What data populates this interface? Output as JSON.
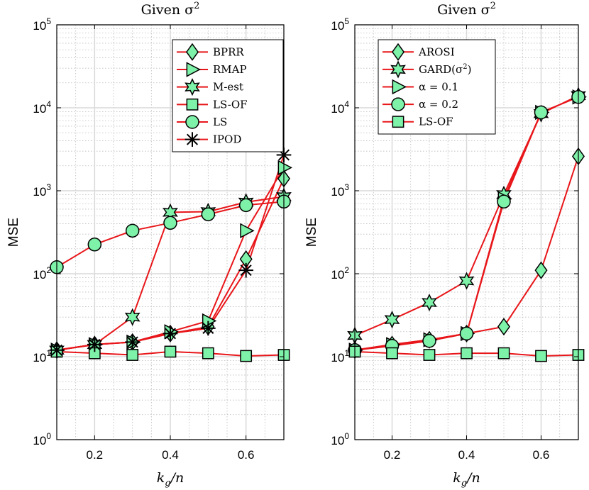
{
  "chart_data": [
    {
      "type": "line",
      "title": "Given σ²",
      "title_main": "Given σ",
      "title_sup": "2",
      "xlabel_k": "k",
      "xlabel_sub": "g",
      "xlabel_rest": "/n",
      "ylabel": "MSE",
      "xlim": [
        0.1,
        0.7
      ],
      "ylim": [
        1,
        100000
      ],
      "yscale": "log",
      "grid": true,
      "legend_position": "top-right",
      "x_ticks": [
        "0.2",
        "0.4",
        "0.6"
      ],
      "x_tick_values": [
        0.2,
        0.4,
        0.6
      ],
      "y_ticks": [
        {
          "base": "10",
          "exp": "0",
          "value": 1
        },
        {
          "base": "10",
          "exp": "1",
          "value": 10
        },
        {
          "base": "10",
          "exp": "2",
          "value": 100
        },
        {
          "base": "10",
          "exp": "3",
          "value": 1000
        },
        {
          "base": "10",
          "exp": "4",
          "value": 10000
        },
        {
          "base": "10",
          "exp": "5",
          "value": 100000
        }
      ],
      "x": [
        0.1,
        0.2,
        0.3,
        0.4,
        0.5,
        0.6,
        0.7
      ],
      "series": [
        {
          "name": "BPRR",
          "marker": "diamond",
          "values": [
            12,
            14,
            15,
            19,
            23,
            150,
            1400
          ]
        },
        {
          "name": "RMAP",
          "marker": "triangle-right",
          "values": [
            12,
            14,
            15,
            20,
            27,
            330,
            1900
          ]
        },
        {
          "name": "M-est",
          "marker": "hexagram",
          "values": [
            12,
            14,
            30,
            550,
            560,
            730,
            850
          ]
        },
        {
          "name": "LS-OF",
          "marker": "square",
          "values": [
            11.5,
            11,
            10.5,
            11.5,
            11,
            10.2,
            10.5
          ]
        },
        {
          "name": "LS",
          "marker": "circle",
          "values": [
            120,
            225,
            330,
            410,
            520,
            670,
            740
          ]
        },
        {
          "name": "IPOD",
          "marker": "asterisk",
          "values": [
            12,
            14,
            15,
            19,
            22,
            110,
            2700
          ]
        }
      ]
    },
    {
      "type": "line",
      "title": "Given σ²",
      "title_main": "Given σ",
      "title_sup": "2",
      "xlabel_k": "k",
      "xlabel_sub": "g",
      "xlabel_rest": "/n",
      "ylabel": "MSE",
      "xlim": [
        0.1,
        0.7
      ],
      "ylim": [
        1,
        100000
      ],
      "yscale": "log",
      "grid": true,
      "legend_position": "top-left",
      "x_ticks": [
        "0.2",
        "0.4",
        "0.6"
      ],
      "x_tick_values": [
        0.2,
        0.4,
        0.6
      ],
      "y_ticks": [
        {
          "base": "10",
          "exp": "0",
          "value": 1
        },
        {
          "base": "10",
          "exp": "1",
          "value": 10
        },
        {
          "base": "10",
          "exp": "2",
          "value": 100
        },
        {
          "base": "10",
          "exp": "3",
          "value": 1000
        },
        {
          "base": "10",
          "exp": "4",
          "value": 10000
        },
        {
          "base": "10",
          "exp": "5",
          "value": 100000
        }
      ],
      "x": [
        0.1,
        0.2,
        0.3,
        0.4,
        0.5,
        0.6,
        0.7
      ],
      "series": [
        {
          "name": "AROSI",
          "marker": "diamond",
          "values": [
            12,
            14,
            16,
            19,
            23,
            110,
            2600
          ]
        },
        {
          "name": "GARD(σ²)",
          "name_main": "GARD(σ",
          "name_sup": "2",
          "name_tail": ")",
          "marker": "hexagram",
          "values": [
            18,
            28,
            45,
            82,
            900,
            8500,
            14000
          ]
        },
        {
          "name": "α = 0.1",
          "marker": "triangle-right",
          "values": [
            12,
            14,
            16,
            19,
            800,
            8800,
            13500
          ]
        },
        {
          "name": "α = 0.2",
          "marker": "circle",
          "values": [
            12,
            13.5,
            15.5,
            19,
            740,
            8800,
            13500
          ]
        },
        {
          "name": "LS-OF",
          "marker": "square",
          "values": [
            11.5,
            11,
            10.5,
            11,
            11,
            10.2,
            10.5
          ]
        }
      ]
    }
  ],
  "style": {
    "line_color": "#e8161a",
    "marker_fill": "#7df2a8",
    "marker_edge": "#000000",
    "grid_color": "#d9d9d9"
  }
}
